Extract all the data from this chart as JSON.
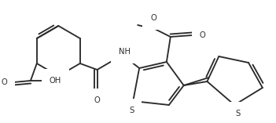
{
  "bg_color": "#ffffff",
  "line_color": "#2b2b2b",
  "line_width": 1.35,
  "figsize": [
    3.51,
    1.57
  ],
  "dpi": 100,
  "font_size": 7.2,
  "atoms": {
    "O_label": "O",
    "OH_label": "OH",
    "NH_label": "NH",
    "S_label": "S"
  }
}
